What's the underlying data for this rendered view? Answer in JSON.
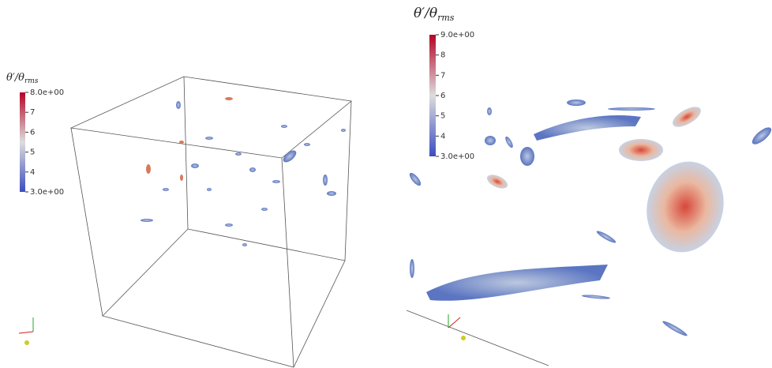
{
  "panels": [
    {
      "colorbar": {
        "title": "θ′/θ",
        "title_sub": "rms",
        "labels": [
          "8.0e+00",
          "7",
          "6",
          "5",
          "4",
          "3.0e+00"
        ]
      }
    },
    {
      "colorbar": {
        "title": "θ′/θ",
        "title_sub": "rms",
        "labels": [
          "9.0e+00",
          "8",
          "7",
          "6",
          "5",
          "4",
          "3.0e+00"
        ]
      }
    }
  ]
}
